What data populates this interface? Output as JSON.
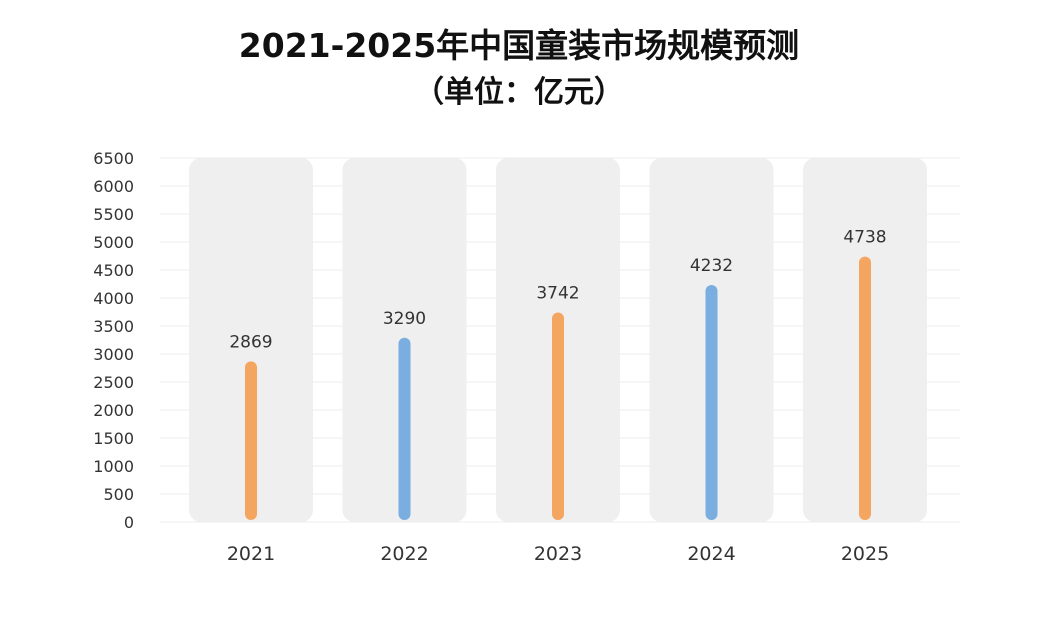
{
  "chart_data": {
    "type": "bar",
    "title": "2021-2025年中国童装市场规模预测",
    "subtitle": "（单位：亿元）",
    "categories": [
      "2021",
      "2022",
      "2023",
      "2024",
      "2025"
    ],
    "values": [
      2869,
      3290,
      3742,
      4232,
      4738
    ],
    "ylim": [
      0,
      6500
    ],
    "yticks": [
      0,
      500,
      1000,
      1500,
      2000,
      2500,
      3000,
      3500,
      4000,
      4500,
      5000,
      5500,
      6000,
      6500
    ],
    "grid": true,
    "bar_colors": [
      "#f4a55f",
      "#7aaee0",
      "#f4a55f",
      "#7aaee0",
      "#f4a55f"
    ],
    "background_band_color": "#efefef"
  }
}
